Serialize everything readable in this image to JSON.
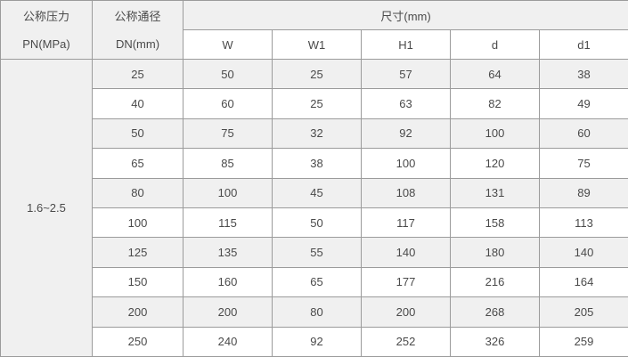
{
  "table": {
    "header": {
      "pressure_label_line1": "公称压力",
      "pressure_label_line2": "PN(MPa)",
      "dn_label_line1": "公称通径",
      "dn_label_line2": "DN(mm)",
      "size_group_label": "尺寸(mm)",
      "size_columns": [
        "W",
        "W1",
        "H1",
        "d",
        "d1"
      ]
    },
    "pressure_value": "1.6~2.5",
    "rows": [
      {
        "dn": "25",
        "values": [
          "50",
          "25",
          "57",
          "64",
          "38"
        ]
      },
      {
        "dn": "40",
        "values": [
          "60",
          "25",
          "63",
          "82",
          "49"
        ]
      },
      {
        "dn": "50",
        "values": [
          "75",
          "32",
          "92",
          "100",
          "60"
        ]
      },
      {
        "dn": "65",
        "values": [
          "85",
          "38",
          "100",
          "120",
          "75"
        ]
      },
      {
        "dn": "80",
        "values": [
          "100",
          "45",
          "108",
          "131",
          "89"
        ]
      },
      {
        "dn": "100",
        "values": [
          "115",
          "50",
          "117",
          "158",
          "113"
        ]
      },
      {
        "dn": "125",
        "values": [
          "135",
          "55",
          "140",
          "180",
          "140"
        ]
      },
      {
        "dn": "150",
        "values": [
          "160",
          "65",
          "177",
          "216",
          "164"
        ]
      },
      {
        "dn": "200",
        "values": [
          "200",
          "80",
          "200",
          "268",
          "205"
        ]
      },
      {
        "dn": "250",
        "values": [
          "240",
          "92",
          "252",
          "326",
          "259"
        ]
      }
    ],
    "colors": {
      "header_bg": "#f0f0f0",
      "stripe_bg": "#f0f0f0",
      "row_bg": "#ffffff",
      "border": "#9b9b9b",
      "text": "#4a4a4a"
    }
  }
}
